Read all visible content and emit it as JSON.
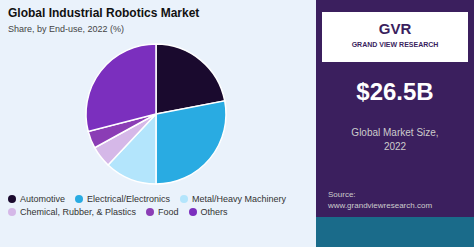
{
  "chart_data": {
    "type": "pie",
    "title": "Global Industrial Robotics Market",
    "subtitle": "Share, by End-use, 2022 (%)",
    "categories": [
      "Automotive",
      "Electrical/Electronics",
      "Metal/Heavy Machinery",
      "Chemical, Rubber, & Plastics",
      "Food",
      "Others"
    ],
    "values": [
      22,
      28,
      12,
      5,
      4,
      29
    ],
    "colors": [
      "#1a0a2e",
      "#29abe2",
      "#b3e5fc",
      "#d5b8e8",
      "#8b3db5",
      "#7b2fbe"
    ],
    "legend": "bottom",
    "annotations": [
      "GVR",
      "GRAND VIEW RESEARCH",
      "$26.5B",
      "Global Market Size,",
      "2022",
      "Source:\nwww.grandviewresearch.com"
    ]
  }
}
